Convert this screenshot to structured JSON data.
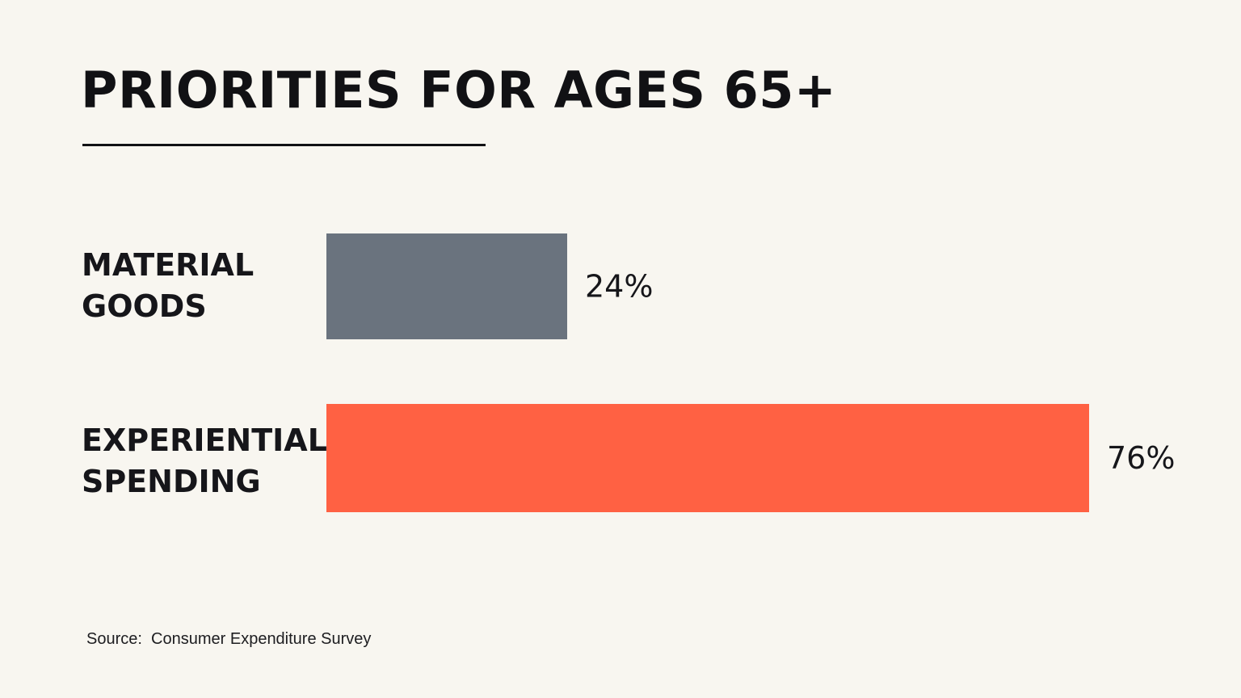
{
  "title": "PRIORITIES FOR AGES 65+",
  "source": "Source:  Consumer Expenditure Survey",
  "colors": {
    "background": "#f8f6f0",
    "text": "#16161a",
    "material_bar": "#6a737e",
    "experiential_bar": "#ff6143"
  },
  "chart_data": {
    "type": "bar",
    "orientation": "horizontal",
    "title": "PRIORITIES FOR AGES 65+",
    "categories": [
      "MATERIAL GOODS",
      "EXPERIENTIAL SPENDING"
    ],
    "category_lines": [
      [
        "MATERIAL",
        "GOODS"
      ],
      [
        "EXPERIENTIAL",
        "SPENDING"
      ]
    ],
    "values": [
      24,
      76
    ],
    "value_labels": [
      "24%",
      "76%"
    ],
    "unit": "%",
    "bar_colors": [
      "#6a737e",
      "#ff6143"
    ],
    "xlim": [
      0,
      76
    ],
    "grid": false,
    "axes_visible": false,
    "legend": "none",
    "xlabel": "",
    "ylabel": ""
  }
}
